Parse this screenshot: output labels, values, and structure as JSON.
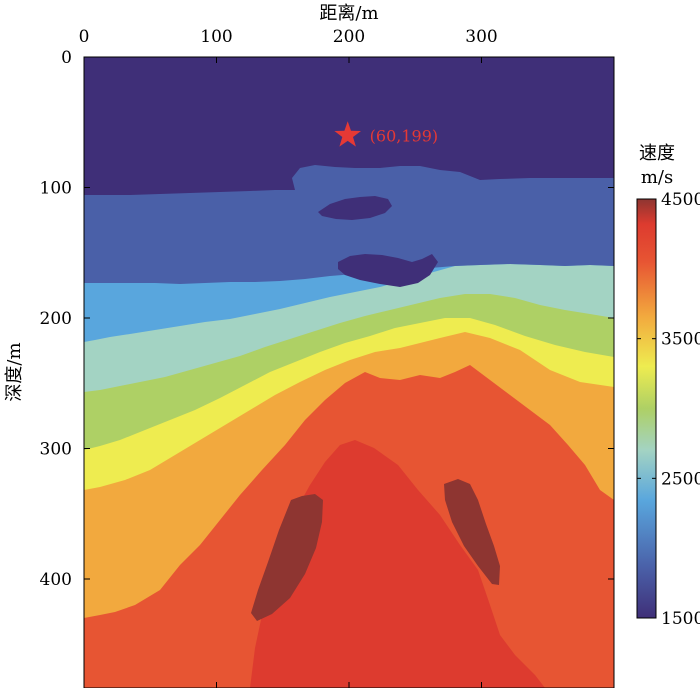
{
  "chart_data": {
    "type": "heatmap",
    "xlabel": "距离/m",
    "ylabel": "深度/m",
    "xlim": [
      0,
      400
    ],
    "ylim": [
      0,
      480
    ],
    "x_ticks": [
      0,
      100,
      200,
      300
    ],
    "y_ticks": [
      0,
      100,
      200,
      300,
      400
    ],
    "x_axis_position": "top",
    "y_axis_inverted": true,
    "colorbar": {
      "title_line1": "速度",
      "title_line2": "m/s",
      "min": 1500,
      "max": 4500,
      "ticks": [
        1500,
        2500,
        3500,
        4500
      ],
      "colors": [
        "#3f2f78",
        "#4a60a8",
        "#59a6dd",
        "#a3d3c3",
        "#aed065",
        "#eeec50",
        "#f2a93e",
        "#e75533",
        "#dd3b2f",
        "#8e3531"
      ]
    },
    "layers": [
      {
        "velocity": 1600,
        "color": "#3f2f78"
      },
      {
        "velocity": 1900,
        "color": "#4a60a8"
      },
      {
        "velocity": 2300,
        "color": "#59a6dd"
      },
      {
        "velocity": 2700,
        "color": "#a3d3c3"
      },
      {
        "velocity": 3000,
        "color": "#aed065"
      },
      {
        "velocity": 3300,
        "color": "#eeec50"
      },
      {
        "velocity": 3700,
        "color": "#f2a93e"
      },
      {
        "velocity": 4100,
        "color": "#e75533"
      },
      {
        "velocity": 4250,
        "color": "#dd3b2f"
      },
      {
        "velocity": 4500,
        "color": "#8e3531"
      }
    ],
    "source": {
      "depth": 60,
      "distance": 199,
      "label": "(60,199)",
      "marker": "star",
      "color": "#e53935"
    }
  }
}
